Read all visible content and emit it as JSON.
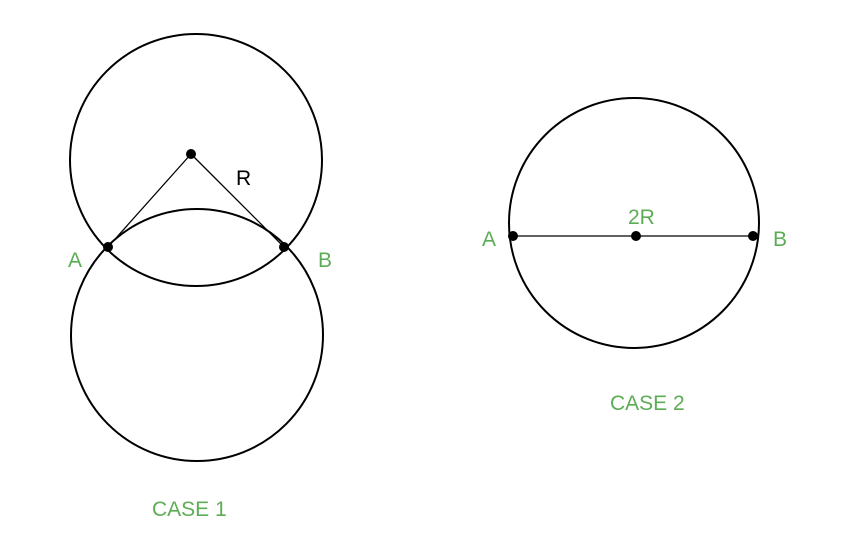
{
  "colors": {
    "stroke": "#000000",
    "label_green": "#5cad55",
    "background": "#ffffff"
  },
  "case1": {
    "point_a_label": "A",
    "point_b_label": "B",
    "radius_label": "R",
    "caption": "CASE 1"
  },
  "case2": {
    "point_a_label": "A",
    "point_b_label": "B",
    "diameter_label": "2R",
    "caption": "CASE 2"
  }
}
